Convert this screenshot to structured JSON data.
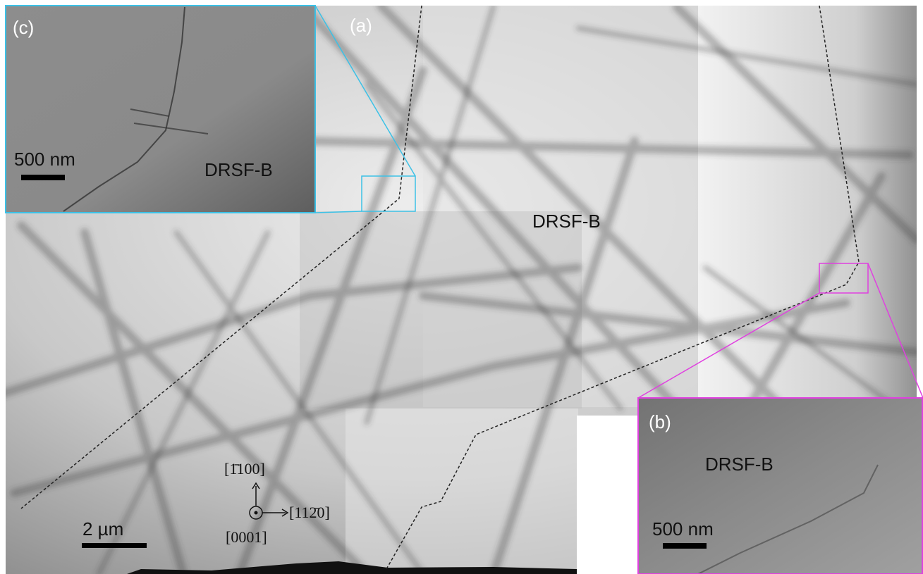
{
  "panel_a": {
    "label": "(a)",
    "annotation": "DRSF-B",
    "scale_bar": "2 µm",
    "directions": {
      "up": "[1̄100]",
      "right": "[112̄0]",
      "out": "[0001]"
    }
  },
  "panel_b": {
    "label": "(b)",
    "annotation": "DRSF-B",
    "scale_bar": "500 nm"
  },
  "panel_c": {
    "label": "(c)",
    "annotation": "DRSF-B",
    "scale_bar": "500 nm"
  }
}
